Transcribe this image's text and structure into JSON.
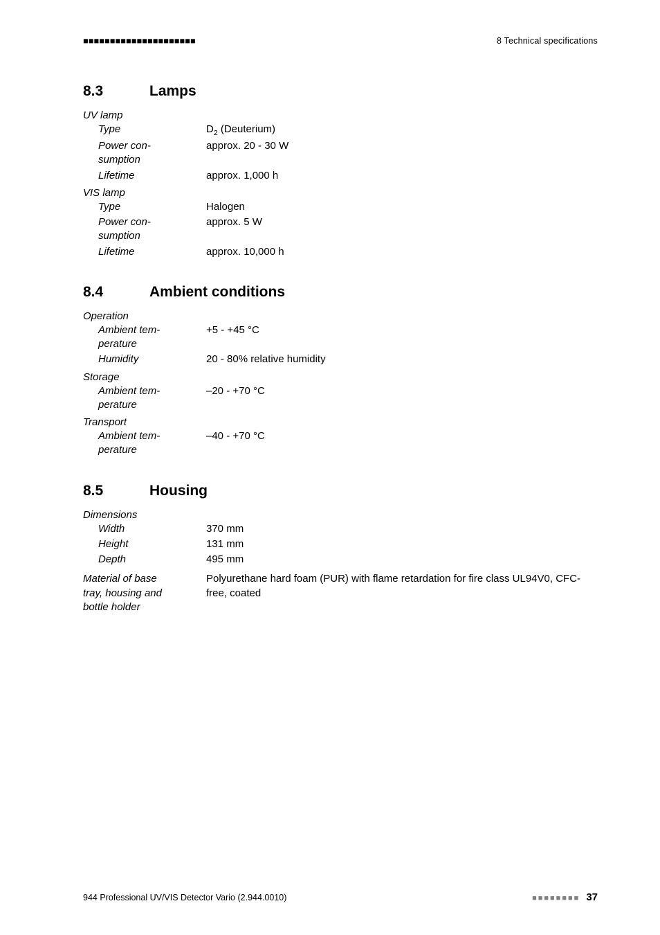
{
  "header": {
    "left_decor": "■■■■■■■■■■■■■■■■■■■■■",
    "right": "8 Technical specifications"
  },
  "sections": [
    {
      "num": "8.3",
      "title": "Lamps",
      "groups": [
        {
          "label": "UV lamp",
          "rows": [
            {
              "key": "Type",
              "val_html": "D<sub>2</sub> (Deuterium)"
            },
            {
              "key": "Power con-<br>sumption",
              "val": "approx. 20 - 30 W"
            },
            {
              "key": "Lifetime",
              "val": "approx. 1,000 h"
            }
          ]
        },
        {
          "label": "VIS lamp",
          "rows": [
            {
              "key": "Type",
              "val": "Halogen"
            },
            {
              "key": "Power con-<br>sumption",
              "val": "approx. 5 W"
            },
            {
              "key": "Lifetime",
              "val": "approx. 10,000 h"
            }
          ]
        }
      ]
    },
    {
      "num": "8.4",
      "title": "Ambient conditions",
      "groups": [
        {
          "label": "Operation",
          "rows": [
            {
              "key": "Ambient tem-<br>perature",
              "val": "+5 - +45 °C"
            },
            {
              "key": "Humidity",
              "val": "20 - 80% relative humidity"
            }
          ]
        },
        {
          "label": "Storage",
          "rows": [
            {
              "key": "Ambient tem-<br>perature",
              "val": "–20 - +70 °C"
            }
          ]
        },
        {
          "label": "Transport",
          "rows": [
            {
              "key": "Ambient tem-<br>perature",
              "val": "–40 - +70 °C"
            }
          ]
        }
      ]
    },
    {
      "num": "8.5",
      "title": "Housing",
      "groups": [
        {
          "label": "Dimensions",
          "rows": [
            {
              "key": "Width",
              "val": "370 mm"
            },
            {
              "key": "Height",
              "val": "131 mm"
            },
            {
              "key": "Depth",
              "val": "495 mm"
            }
          ]
        }
      ],
      "wide_rows": [
        {
          "key": "Material of base<br>tray, housing and<br>bottle holder",
          "val": "Polyurethane hard foam (PUR) with flame retardation for fire class UL94V0, CFC-free, coated"
        }
      ]
    }
  ],
  "footer": {
    "left": "944 Professional UV/VIS Detector Vario (2.944.0010)",
    "right_decor": "■■■■■■■■",
    "page": "37"
  }
}
